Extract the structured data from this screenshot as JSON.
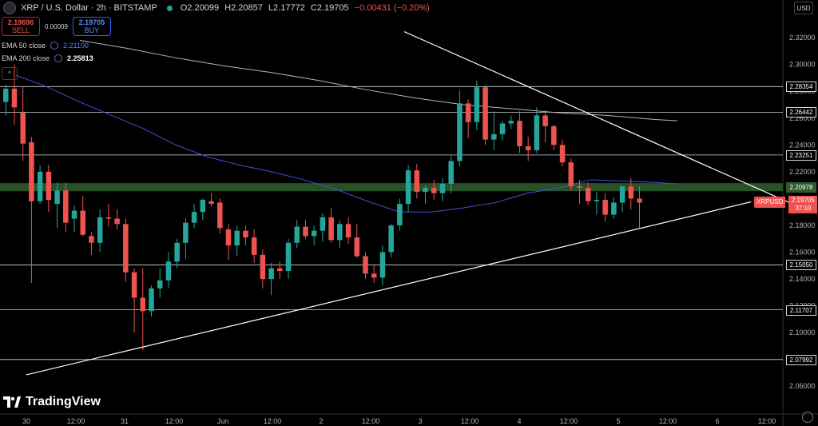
{
  "header": {
    "title": "XRP / U.S. Dollar · 2h · BITSTAMP",
    "open": "O2.20099",
    "high": "H2.20857",
    "low": "L2.17772",
    "close": "C2.19705",
    "change": "−0.00431 (−0.20%)"
  },
  "trade": {
    "sell_price": "2.19696",
    "sell_label": "SELL",
    "spread": "0.00009",
    "buy_price": "2.19705",
    "buy_label": "BUY"
  },
  "indicators": [
    {
      "label": "EMA 50 close",
      "value": "2.21100"
    },
    {
      "label": "EMA 200 close",
      "value": "2.25813"
    }
  ],
  "currency": "USD",
  "logo_text": "TradingView",
  "current_price": {
    "symbol": "XRPUSD",
    "price": "2.19705",
    "countdown": "37:10"
  },
  "chart_data": {
    "type": "candlestick",
    "y_ticks": [
      "2.32000",
      "2.30000",
      "2.28000",
      "2.26000",
      "2.24000",
      "2.22000",
      "2.20000",
      "2.18000",
      "2.16000",
      "2.14000",
      "2.12000",
      "2.10000",
      "2.08000",
      "2.06000"
    ],
    "ylim": [
      2.05,
      2.335
    ],
    "x_ticks": [
      "30",
      "12:00",
      "31",
      "12:00",
      "Jun",
      "12:00",
      "2",
      "12:00",
      "3",
      "12:00",
      "4",
      "12:00",
      "5",
      "12:00",
      "6",
      "12:00"
    ],
    "horizontal_levels": [
      {
        "price": 2.28354,
        "label": "2.28354"
      },
      {
        "price": 2.26442,
        "label": "2.26442"
      },
      {
        "price": 2.23251,
        "label": "2.23251"
      },
      {
        "price": 2.1505,
        "label": "2.15050"
      },
      {
        "price": 2.11707,
        "label": "2.11707"
      },
      {
        "price": 2.07992,
        "label": "2.07992"
      }
    ],
    "zone": {
      "low": 2.2055,
      "high": 2.2115,
      "label": "2.20978"
    },
    "trendlines": [
      {
        "p1": [
          33,
          2.0685
        ],
        "p2": [
          940,
          2.1975
        ]
      },
      {
        "p1": [
          506,
          2.3245
        ],
        "p2": [
          990,
          2.1965
        ]
      }
    ],
    "candles": [
      [
        2.272,
        2.285,
        2.262,
        2.282
      ],
      [
        2.282,
        2.3,
        2.255,
        2.268
      ],
      [
        2.264,
        2.284,
        2.228,
        2.241
      ],
      [
        2.242,
        2.246,
        2.137,
        2.198
      ],
      [
        2.198,
        2.225,
        2.196,
        2.22
      ],
      [
        2.22,
        2.225,
        2.19,
        2.199
      ],
      [
        2.196,
        2.212,
        2.178,
        2.206
      ],
      [
        2.206,
        2.212,
        2.175,
        2.182
      ],
      [
        2.185,
        2.195,
        2.175,
        2.191
      ],
      [
        2.191,
        2.202,
        2.172,
        2.173
      ],
      [
        2.172,
        2.175,
        2.158,
        2.167
      ],
      [
        2.167,
        2.192,
        2.16,
        2.186
      ],
      [
        2.186,
        2.196,
        2.179,
        2.185
      ],
      [
        2.185,
        2.192,
        2.177,
        2.181
      ],
      [
        2.181,
        2.185,
        2.138,
        2.145
      ],
      [
        2.145,
        2.148,
        2.1,
        2.126
      ],
      [
        2.126,
        2.148,
        2.087,
        2.116
      ],
      [
        2.116,
        2.135,
        2.112,
        2.133
      ],
      [
        2.133,
        2.148,
        2.126,
        2.139
      ],
      [
        2.139,
        2.16,
        2.133,
        2.153
      ],
      [
        2.153,
        2.17,
        2.148,
        2.167
      ],
      [
        2.167,
        2.185,
        2.155,
        2.182
      ],
      [
        2.182,
        2.196,
        2.178,
        2.19
      ],
      [
        2.19,
        2.2,
        2.184,
        2.199
      ],
      [
        2.198,
        2.204,
        2.194,
        2.196
      ],
      [
        2.197,
        2.2,
        2.174,
        2.178
      ],
      [
        2.177,
        2.181,
        2.154,
        2.165
      ],
      [
        2.165,
        2.18,
        2.157,
        2.176
      ],
      [
        2.176,
        2.18,
        2.165,
        2.171
      ],
      [
        2.171,
        2.177,
        2.152,
        2.158
      ],
      [
        2.158,
        2.162,
        2.133,
        2.14
      ],
      [
        2.14,
        2.152,
        2.128,
        2.148
      ],
      [
        2.148,
        2.153,
        2.14,
        2.146
      ],
      [
        2.146,
        2.17,
        2.14,
        2.167
      ],
      [
        2.167,
        2.184,
        2.163,
        2.179
      ],
      [
        2.179,
        2.184,
        2.17,
        2.172
      ],
      [
        2.172,
        2.18,
        2.165,
        2.176
      ],
      [
        2.176,
        2.189,
        2.168,
        2.186
      ],
      [
        2.186,
        2.193,
        2.167,
        2.169
      ],
      [
        2.169,
        2.184,
        2.163,
        2.181
      ],
      [
        2.181,
        2.186,
        2.166,
        2.171
      ],
      [
        2.171,
        2.181,
        2.156,
        2.157
      ],
      [
        2.157,
        2.16,
        2.14,
        2.144
      ],
      [
        2.144,
        2.15,
        2.137,
        2.141
      ],
      [
        2.141,
        2.165,
        2.135,
        2.16
      ],
      [
        2.16,
        2.181,
        2.156,
        2.18
      ],
      [
        2.18,
        2.2,
        2.176,
        2.196
      ],
      [
        2.196,
        2.225,
        2.19,
        2.221
      ],
      [
        2.221,
        2.226,
        2.2,
        2.205
      ],
      [
        2.205,
        2.21,
        2.196,
        2.208
      ],
      [
        2.208,
        2.214,
        2.199,
        2.204
      ],
      [
        2.204,
        2.215,
        2.198,
        2.211
      ],
      [
        2.211,
        2.232,
        2.204,
        2.228
      ],
      [
        2.228,
        2.281,
        2.224,
        2.271
      ],
      [
        2.271,
        2.274,
        2.245,
        2.257
      ],
      [
        2.257,
        2.288,
        2.251,
        2.283
      ],
      [
        2.283,
        2.285,
        2.24,
        2.244
      ],
      [
        2.244,
        2.265,
        2.236,
        2.248
      ],
      [
        2.248,
        2.258,
        2.243,
        2.256
      ],
      [
        2.256,
        2.262,
        2.252,
        2.258
      ],
      [
        2.258,
        2.265,
        2.234,
        2.239
      ],
      [
        2.239,
        2.246,
        2.228,
        2.236
      ],
      [
        2.236,
        2.268,
        2.234,
        2.262
      ],
      [
        2.262,
        2.266,
        2.242,
        2.254
      ],
      [
        2.254,
        2.255,
        2.236,
        2.24
      ],
      [
        2.24,
        2.244,
        2.224,
        2.227
      ],
      [
        2.227,
        2.23,
        2.206,
        2.209
      ],
      [
        2.209,
        2.214,
        2.196,
        2.208
      ],
      [
        2.208,
        2.212,
        2.195,
        2.198
      ],
      [
        2.198,
        2.205,
        2.188,
        2.199
      ],
      [
        2.199,
        2.204,
        2.183,
        2.188
      ],
      [
        2.188,
        2.201,
        2.185,
        2.197
      ],
      [
        2.197,
        2.21,
        2.19,
        2.209
      ],
      [
        2.209,
        2.215,
        2.192,
        2.2
      ],
      [
        2.2,
        2.209,
        2.178,
        2.197
      ]
    ],
    "ema_50": [
      [
        20,
        2.292
      ],
      [
        60,
        2.283
      ],
      [
        100,
        2.272
      ],
      [
        140,
        2.262
      ],
      [
        180,
        2.252
      ],
      [
        220,
        2.24
      ],
      [
        260,
        2.231
      ],
      [
        300,
        2.225
      ],
      [
        340,
        2.22
      ],
      [
        380,
        2.214
      ],
      [
        420,
        2.207
      ],
      [
        460,
        2.198
      ],
      [
        500,
        2.19
      ],
      [
        540,
        2.19
      ],
      [
        580,
        2.193
      ],
      [
        620,
        2.197
      ],
      [
        660,
        2.204
      ],
      [
        700,
        2.208
      ],
      [
        740,
        2.214
      ],
      [
        780,
        2.213
      ],
      [
        820,
        2.212
      ],
      [
        845,
        2.211
      ]
    ],
    "ema_200": [
      [
        100,
        2.318
      ],
      [
        160,
        2.312
      ],
      [
        220,
        2.305
      ],
      [
        280,
        2.299
      ],
      [
        340,
        2.294
      ],
      [
        400,
        2.288
      ],
      [
        460,
        2.281
      ],
      [
        520,
        2.275
      ],
      [
        580,
        2.27
      ],
      [
        640,
        2.267
      ],
      [
        700,
        2.264
      ],
      [
        760,
        2.262
      ],
      [
        820,
        2.259
      ],
      [
        848,
        2.258
      ]
    ]
  }
}
